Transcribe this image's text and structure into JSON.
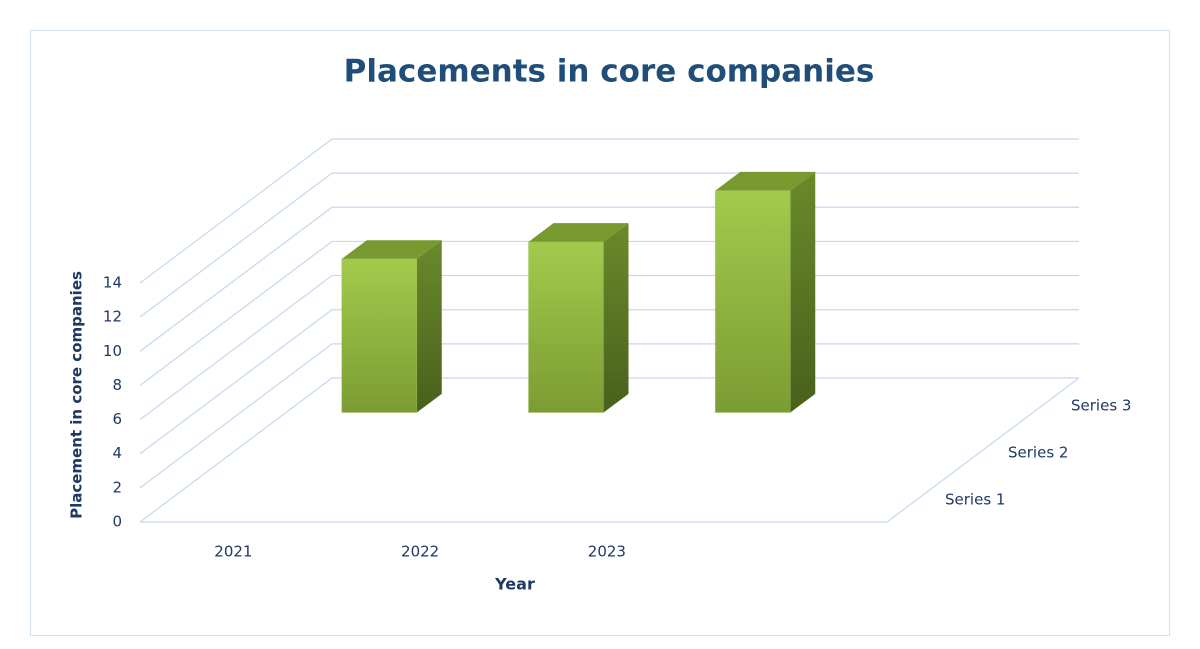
{
  "chart_data": {
    "type": "bar3d",
    "title": "Placements in core companies",
    "x_label": "Year",
    "y_label": "Placement in core companies",
    "categories": [
      "2021",
      "2022",
      "2023"
    ],
    "series": [
      {
        "name": "Series 1",
        "color": "#8db33a",
        "values": [
          null,
          null,
          null
        ]
      },
      {
        "name": "Series 2",
        "color": "#8db33a",
        "values": [
          null,
          null,
          null
        ]
      },
      {
        "name": "Series 3",
        "color": "#8db33a",
        "values": [
          9,
          10,
          13
        ]
      }
    ],
    "ylim": [
      0,
      14
    ],
    "yticks": [
      0,
      2,
      4,
      6,
      8,
      10,
      12,
      14
    ],
    "grid": true
  }
}
